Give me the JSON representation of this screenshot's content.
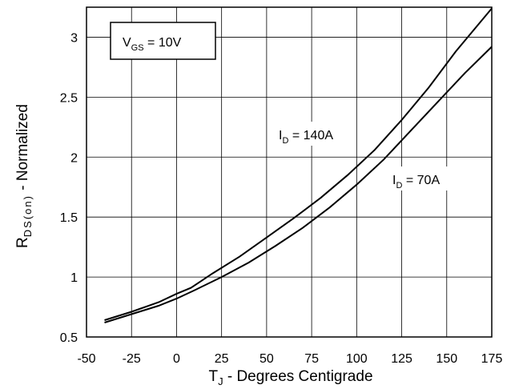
{
  "chart_data": {
    "type": "line",
    "title": "",
    "xlabel": {
      "main": "T",
      "sub": "J",
      "rest": " - Degrees Centigrade"
    },
    "ylabel": {
      "main": "R",
      "sub": "DS(on)",
      "rest": " - Normalized"
    },
    "xlim": [
      -50,
      175
    ],
    "ylim": [
      0.5,
      3.25
    ],
    "xticks": [
      -50,
      -25,
      0,
      25,
      50,
      75,
      100,
      125,
      150,
      175
    ],
    "xtick_labels": [
      "-50",
      "-25",
      "0",
      "25",
      "50",
      "75",
      "100",
      "125",
      "150",
      "175"
    ],
    "yticks": [
      0.5,
      1,
      1.5,
      2,
      2.5,
      3
    ],
    "ytick_labels": [
      "0.5",
      "1",
      "1.5",
      "2",
      "2.5",
      "3"
    ],
    "grid": true,
    "condition_box": {
      "main": "V",
      "sub": "GS",
      "rest": " = 10V"
    },
    "series": [
      {
        "name": "140A",
        "label": {
          "main": "I",
          "sub": "D",
          "rest": " = 140A"
        },
        "x": [
          -40,
          -25,
          -10,
          0,
          8,
          20,
          35,
          50,
          65,
          80,
          95,
          110,
          125,
          140,
          155,
          175
        ],
        "y": [
          0.64,
          0.71,
          0.79,
          0.86,
          0.91,
          1.03,
          1.17,
          1.33,
          1.49,
          1.66,
          1.85,
          2.06,
          2.31,
          2.58,
          2.88,
          3.24
        ]
      },
      {
        "name": "70A",
        "label": {
          "main": "I",
          "sub": "D",
          "rest": " = 70A"
        },
        "x": [
          -40,
          -25,
          -10,
          0,
          10,
          25,
          40,
          55,
          70,
          85,
          100,
          115,
          130,
          145,
          160,
          175
        ],
        "y": [
          0.62,
          0.69,
          0.76,
          0.82,
          0.89,
          1.0,
          1.12,
          1.26,
          1.41,
          1.58,
          1.77,
          1.98,
          2.22,
          2.46,
          2.7,
          2.92
        ]
      }
    ]
  }
}
